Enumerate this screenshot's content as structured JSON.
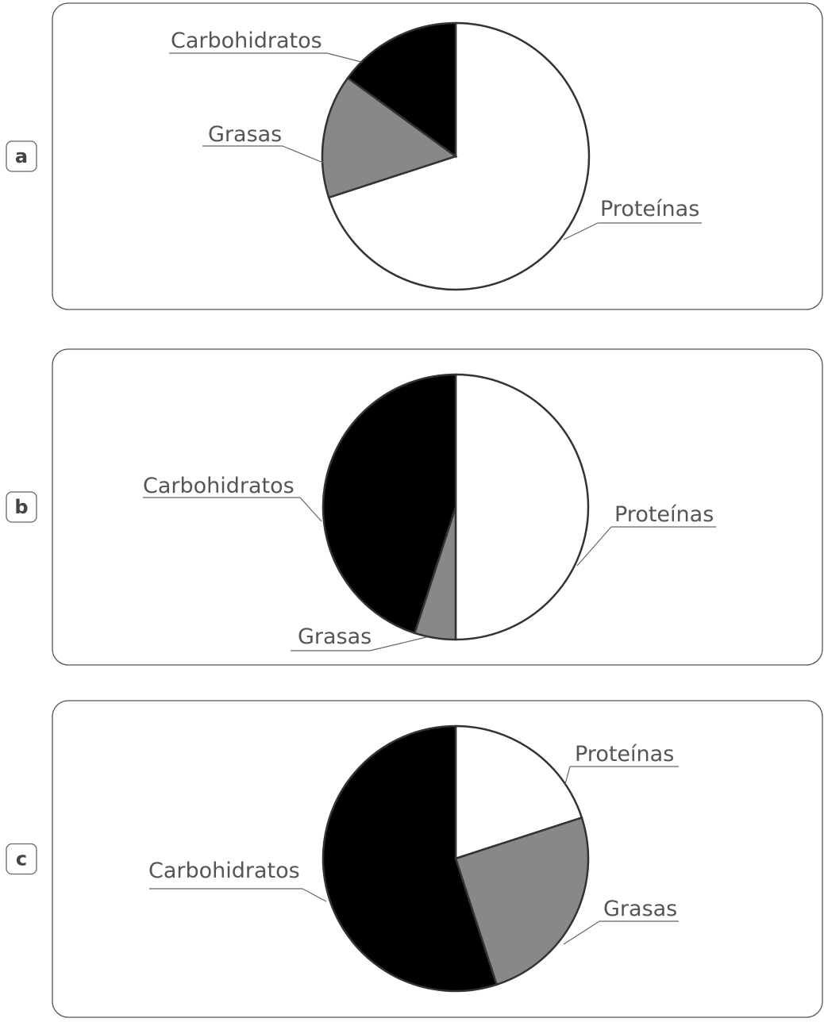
{
  "chart_data": [
    {
      "type": "pie",
      "label": "a",
      "categories": [
        "Proteínas",
        "Grasas",
        "Carbohidratos"
      ],
      "values": [
        70,
        15,
        15
      ],
      "colors": [
        "#ffffff",
        "#888888",
        "#000000"
      ]
    },
    {
      "type": "pie",
      "label": "b",
      "categories": [
        "Proteínas",
        "Grasas",
        "Carbohidratos"
      ],
      "values": [
        50,
        5,
        45
      ],
      "colors": [
        "#ffffff",
        "#888888",
        "#000000"
      ]
    },
    {
      "type": "pie",
      "label": "c",
      "categories": [
        "Proteínas",
        "Grasas",
        "Carbohidratos"
      ],
      "values": [
        20,
        25,
        55
      ],
      "colors": [
        "#ffffff",
        "#888888",
        "#000000"
      ]
    }
  ]
}
